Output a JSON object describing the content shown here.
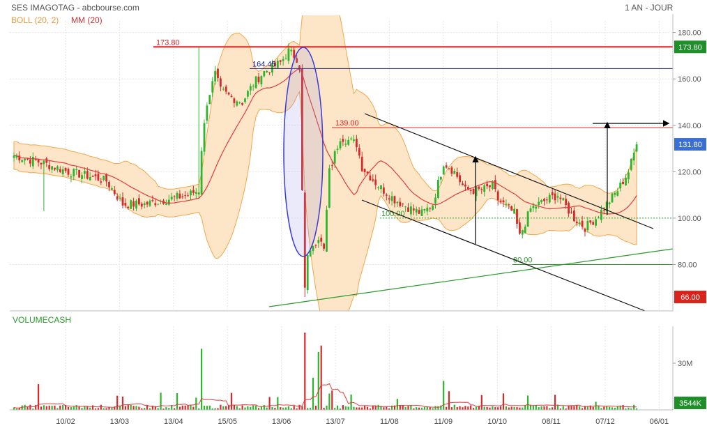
{
  "header": {
    "title": "SES IMAGOTAG - abcbourse.com",
    "period": "1 AN - JOUR",
    "boll_label": "BOLL (20, 2)",
    "mm_label": "MM (20)",
    "volume_label": "VOLUMECASH"
  },
  "colors": {
    "up": "#2db52d",
    "down": "#d42a2a",
    "boll_fill": "#fde6c7",
    "boll_line": "#f3a64a",
    "ma_line": "#e23b3b",
    "resistance": "#e02020",
    "trend_green": "#2a9a2a",
    "channel": "#111111",
    "ellipse": "#3a3ad8",
    "badge_red": "#d9241c",
    "badge_green": "#1f8f2a",
    "badge_blue": "#3b6fd6"
  },
  "chart_data": {
    "type": "candlestick",
    "y_axis": {
      "min": 60,
      "max": 185,
      "ticks": [
        80,
        100,
        120,
        140,
        160,
        180
      ]
    },
    "x_ticks": [
      "10/02",
      "13/03",
      "13/04",
      "15/05",
      "13/06",
      "13/07",
      "11/08",
      "11/09",
      "10/10",
      "08/11",
      "07/12",
      "06/01"
    ],
    "levels": [
      {
        "value": 173.8,
        "label": "173.80",
        "badge": "173.80"
      },
      {
        "value": 164.45,
        "label": "164.45"
      },
      {
        "value": 139.0,
        "label": "139.00"
      },
      {
        "value": 100.0,
        "label": "100.00"
      },
      {
        "value": 80.0,
        "label": "80.00"
      }
    ],
    "badges": {
      "last": "131.80",
      "low": "66.00",
      "volume": "3544K"
    },
    "volume_axis": {
      "tick_label": "30M"
    },
    "anchors": [
      {
        "d": 0,
        "c": 127
      },
      {
        "d": 10,
        "c": 124
      },
      {
        "d": 20,
        "c": 120
      },
      {
        "d": 28,
        "c": 118
      },
      {
        "d": 34,
        "c": 116
      },
      {
        "d": 40,
        "c": 106
      },
      {
        "d": 48,
        "c": 106
      },
      {
        "d": 56,
        "c": 108
      },
      {
        "d": 64,
        "c": 110
      },
      {
        "d": 68,
        "c": 112
      },
      {
        "d": 69,
        "c": 130
      },
      {
        "d": 71,
        "c": 150
      },
      {
        "d": 74,
        "c": 162
      },
      {
        "d": 76,
        "c": 155
      },
      {
        "d": 80,
        "c": 152
      },
      {
        "d": 84,
        "c": 150
      },
      {
        "d": 88,
        "c": 158
      },
      {
        "d": 92,
        "c": 163
      },
      {
        "d": 98,
        "c": 167
      },
      {
        "d": 101,
        "c": 172
      },
      {
        "d": 103,
        "c": 170
      },
      {
        "d": 105,
        "c": 164
      },
      {
        "d": 106,
        "c": 112
      },
      {
        "d": 107,
        "c": 70
      },
      {
        "d": 108,
        "c": 84
      },
      {
        "d": 112,
        "c": 92
      },
      {
        "d": 114,
        "c": 86
      },
      {
        "d": 116,
        "c": 120
      },
      {
        "d": 120,
        "c": 135
      },
      {
        "d": 126,
        "c": 132
      },
      {
        "d": 128,
        "c": 122
      },
      {
        "d": 134,
        "c": 114
      },
      {
        "d": 140,
        "c": 108
      },
      {
        "d": 146,
        "c": 104
      },
      {
        "d": 150,
        "c": 102
      },
      {
        "d": 154,
        "c": 106
      },
      {
        "d": 158,
        "c": 124
      },
      {
        "d": 162,
        "c": 120
      },
      {
        "d": 166,
        "c": 112
      },
      {
        "d": 172,
        "c": 112
      },
      {
        "d": 176,
        "c": 114
      },
      {
        "d": 178,
        "c": 108
      },
      {
        "d": 184,
        "c": 102
      },
      {
        "d": 186,
        "c": 92
      },
      {
        "d": 190,
        "c": 104
      },
      {
        "d": 196,
        "c": 108
      },
      {
        "d": 200,
        "c": 110
      },
      {
        "d": 206,
        "c": 100
      },
      {
        "d": 210,
        "c": 96
      },
      {
        "d": 214,
        "c": 100
      },
      {
        "d": 218,
        "c": 106
      },
      {
        "d": 222,
        "c": 112
      },
      {
        "d": 226,
        "c": 120
      },
      {
        "d": 229,
        "c": 131.8
      }
    ]
  }
}
